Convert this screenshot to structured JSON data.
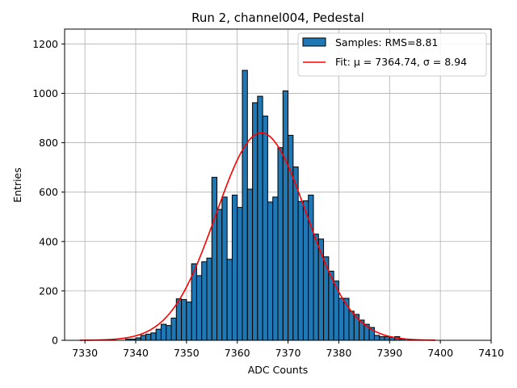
{
  "colors": {
    "bar_fill": "#1f77b4",
    "bar_edge": "#000000",
    "fit_line": "#ff0000",
    "grid": "#b0b0b0",
    "axis": "#000000"
  },
  "chart_data": {
    "type": "bar",
    "title": "Run 2, channel004, Pedestal",
    "xlabel": "ADC Counts",
    "ylabel": "Entries",
    "xlim": [
      7326,
      7410
    ],
    "ylim": [
      0,
      1260
    ],
    "xticks": [
      7330,
      7340,
      7350,
      7360,
      7370,
      7380,
      7390,
      7400,
      7410
    ],
    "yticks": [
      0,
      200,
      400,
      600,
      800,
      1000,
      1200
    ],
    "grid": true,
    "legend_position": "top-right",
    "bin_width": 1,
    "series": [
      {
        "name": "Samples: RMS=8.81",
        "type": "histogram",
        "bins": [
          7338,
          7339,
          7340,
          7341,
          7342,
          7343,
          7344,
          7345,
          7346,
          7347,
          7348,
          7349,
          7350,
          7351,
          7352,
          7353,
          7354,
          7355,
          7356,
          7357,
          7358,
          7359,
          7360,
          7361,
          7362,
          7363,
          7364,
          7365,
          7366,
          7367,
          7368,
          7369,
          7370,
          7371,
          7372,
          7373,
          7374,
          7375,
          7376,
          7377,
          7378,
          7379,
          7380,
          7381,
          7382,
          7383,
          7384,
          7385,
          7386,
          7387,
          7388,
          7389,
          7390,
          7391,
          7392
        ],
        "values": [
          5,
          5,
          10,
          20,
          25,
          30,
          45,
          65,
          60,
          90,
          168,
          165,
          155,
          310,
          262,
          318,
          333,
          660,
          530,
          580,
          328,
          588,
          538,
          1093,
          612,
          962,
          988,
          908,
          560,
          580,
          780,
          1010,
          830,
          702,
          562,
          565,
          588,
          430,
          410,
          338,
          280,
          240,
          170,
          170,
          118,
          105,
          82,
          65,
          52,
          20,
          15,
          15,
          12,
          15,
          5
        ]
      },
      {
        "name": "Fit: μ = 7364.74, σ = 8.94",
        "type": "gaussian-fit",
        "mu": 7364.74,
        "sigma": 8.94,
        "amplitude": 840,
        "x_range": [
          7329,
          7399
        ]
      }
    ],
    "legend": [
      "Samples: RMS=8.81",
      "Fit: μ = 7364.74, σ = 8.94"
    ]
  }
}
